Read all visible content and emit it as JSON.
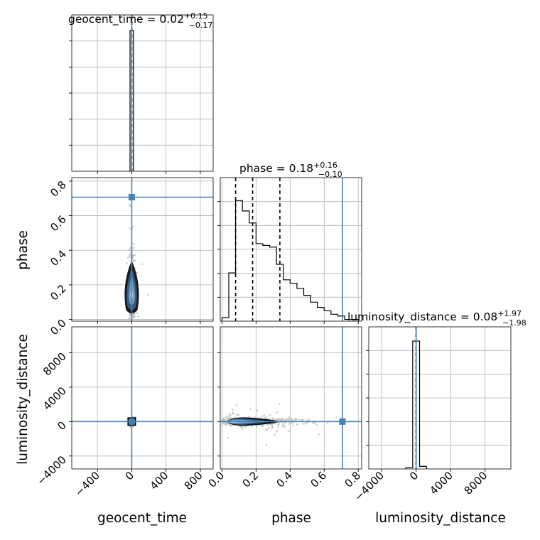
{
  "chart_data": {
    "type": "corner",
    "parameters": [
      "geocent_time",
      "phase",
      "luminosity_distance"
    ],
    "truth_color": "#4682b4",
    "truth": {
      "geocent_time": 0,
      "phase": 0.707,
      "luminosity_distance": 0
    },
    "titles": [
      {
        "param": "geocent_time",
        "base": "geocent_time = 0.02",
        "sup": "+0.15",
        "sub": "−0.17"
      },
      {
        "param": "phase",
        "base": "phase = 0.18",
        "sup": "+0.16",
        "sub": "−0.10"
      },
      {
        "param": "luminosity_distance",
        "base": "luminosity_distance = 0.08",
        "sup": "+1.97",
        "sub": "−1.98"
      }
    ],
    "axis_labels": {
      "x": [
        "geocent_time",
        "phase",
        "luminosity_distance"
      ],
      "y": [
        "phase",
        "luminosity_distance"
      ]
    },
    "ranges": {
      "geocent_time": [
        -700,
        950
      ],
      "phase": [
        -0.01,
        0.82
      ],
      "luminosity_distance": [
        -5500,
        11000
      ]
    },
    "ticks": {
      "geocent_time": {
        "values": [
          -400,
          0,
          400,
          800
        ],
        "labels": [
          "−400",
          "0",
          "400",
          "800"
        ]
      },
      "phase": {
        "values": [
          0.0,
          0.2,
          0.4,
          0.6,
          0.8
        ],
        "labels": [
          "0.0",
          "0.2",
          "0.4",
          "0.6",
          "0.8"
        ]
      },
      "luminosity_distance": {
        "values": [
          -4000,
          0,
          4000,
          8000
        ],
        "labels": [
          "−4000",
          "0",
          "4000",
          "8000"
        ]
      }
    },
    "hist_phase": {
      "edges": [
        0.0,
        0.04,
        0.08,
        0.12,
        0.16,
        0.2,
        0.24,
        0.28,
        0.32,
        0.36,
        0.4,
        0.44,
        0.48,
        0.52,
        0.56,
        0.6,
        0.64,
        0.68,
        0.72,
        0.76,
        0.8
      ],
      "values": [
        0.02,
        0.28,
        0.7,
        0.64,
        0.57,
        0.45,
        0.44,
        0.43,
        0.33,
        0.24,
        0.22,
        0.19,
        0.15,
        0.11,
        0.08,
        0.06,
        0.04,
        0.03,
        0.01,
        0.01
      ],
      "ymax": 0.75,
      "quantile_lines": [
        0.08,
        0.18,
        0.34
      ]
    },
    "hist_geocent_time": {
      "edges": [
        -20,
        20
      ],
      "values": [
        1.0
      ],
      "ymax": 1.0,
      "quantile_lines": [
        -0.15,
        0.02,
        0.17
      ]
    },
    "hist_luminosity_distance": {
      "edges": [
        -1200,
        -400,
        400,
        1200
      ],
      "values": [
        0.01,
        1.0,
        0.02
      ],
      "ymax": 1.0,
      "quantile_lines": [
        -1.9,
        0.08,
        2.05
      ]
    },
    "grid": true
  }
}
